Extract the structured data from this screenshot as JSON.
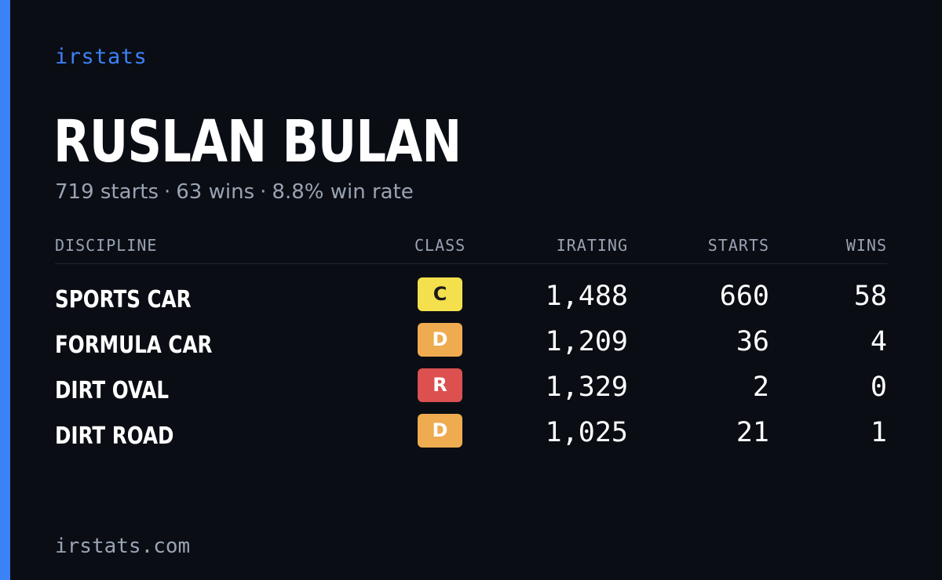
{
  "brand": {
    "label": "irstats"
  },
  "player": {
    "name": "RUSLAN BULAN",
    "summary": {
      "starts_text": "719 starts",
      "wins_text": "63 wins",
      "win_rate_text": "8.8% win rate",
      "separator": "·"
    }
  },
  "table": {
    "headers": {
      "discipline": "DISCIPLINE",
      "class": "CLASS",
      "irating": "IRATING",
      "starts": "STARTS",
      "wins": "WINS"
    },
    "rows": [
      {
        "discipline": "SPORTS CAR",
        "class": "C",
        "class_color": "#f4e04d",
        "class_text_color": "#1a1a1a",
        "irating": "1,488",
        "starts": "660",
        "wins": "58"
      },
      {
        "discipline": "FORMULA CAR",
        "class": "D",
        "class_color": "#eeab4f",
        "class_text_color": "#ffffff",
        "irating": "1,209",
        "starts": "36",
        "wins": "4"
      },
      {
        "discipline": "DIRT OVAL",
        "class": "R",
        "class_color": "#dc5050",
        "class_text_color": "#ffffff",
        "irating": "1,329",
        "starts": "2",
        "wins": "0"
      },
      {
        "discipline": "DIRT ROAD",
        "class": "D",
        "class_color": "#eeab4f",
        "class_text_color": "#ffffff",
        "irating": "1,025",
        "starts": "21",
        "wins": "1"
      }
    ]
  },
  "footer": {
    "site": "irstats.com"
  },
  "colors": {
    "accent": "#3b82f6",
    "background": "#0a0d14",
    "muted_text": "#9aa3b2"
  }
}
